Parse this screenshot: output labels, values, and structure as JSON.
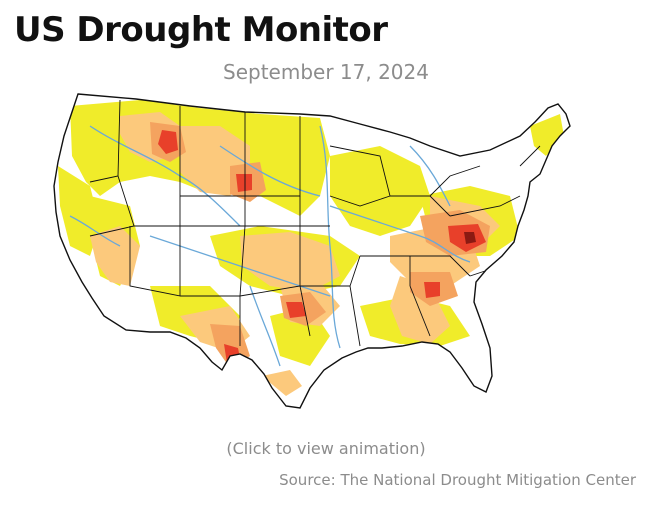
{
  "header": {
    "title": "US Drought Monitor",
    "date": "September 17, 2024"
  },
  "map": {
    "link_text": "(Click to view animation)",
    "colors": {
      "background": "#ffffff",
      "abnormally_dry": "#f0ec2a",
      "moderate_drought": "#fcc97c",
      "severe_drought": "#f4a35f",
      "extreme_drought": "#e8402a",
      "exceptional_drought": "#8b1a12",
      "rivers": "#6aa8d8",
      "borders": "#111111"
    }
  },
  "footer": {
    "source": "Source: The National Drought Mitigation Center"
  }
}
